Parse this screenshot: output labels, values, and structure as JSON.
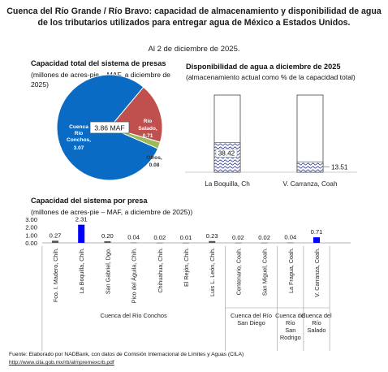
{
  "header": {
    "title_line1": "Cuenca del Río Grande / Río Bravo: capacidad de almacenamiento y disponibilidad de agua",
    "title_line2": "de los tributarios utilizados para entregar agua de México a Estados Unidos.",
    "date_note": "Al 2 de diciembre de 2025."
  },
  "pie_panel": {
    "title": "Capacidad total del sistema de presas",
    "subtitle": "(millones de acres-pie – MAF, a diciembre de 2025)"
  },
  "avail_panel": {
    "title": "Disponibilidad de agua a diciembre de 2025",
    "subtitle": "(almacenamiento actual como % de la capacidad total)"
  },
  "bar_panel": {
    "title": "Capacidad del sistema por presa",
    "subtitle": "(millones de acres-pie – MAF, a diciembre de 2025))"
  },
  "footer": {
    "source": "Fuente: Elaborado por NADBank, con datos de Comisión Internacional de Límites y Aguas (CILA)",
    "link": "http://www.cila.gob.mx/rb/almpremexcrb.pdf"
  },
  "chart_data": [
    {
      "type": "pie",
      "center_label": "3.86 MAF",
      "slices": [
        {
          "label": "Cuenca Río Conchos",
          "value": 3.07,
          "color": "#0a6bc4"
        },
        {
          "label": "Río Salado",
          "value": 0.71,
          "color": "#c0504d"
        },
        {
          "label": "Otros",
          "value": 0.08,
          "color": "#9bbb59"
        }
      ]
    },
    {
      "type": "bar",
      "categories": [
        "La Boquilla, Ch",
        "V. Carranza, Coah"
      ],
      "values": [
        38.42,
        13.51
      ],
      "ylim": [
        0,
        100
      ],
      "value_labels": [
        "38.42",
        "13.51"
      ]
    },
    {
      "type": "bar",
      "yticks": [
        "0.00",
        "1.00",
        "2.00",
        "3.00"
      ],
      "ylim": [
        0,
        3
      ],
      "categories": [
        "Fco. I. Madero, Chih.",
        "La Boquilla, Chih.",
        "San Gabriel, Dgo.",
        "Pico del Águila, Chih.",
        "Chihuahua, Chih.",
        "El Rejón, Chih.",
        "Luis L. León, Chih.",
        "Centenario, Coah.",
        "San Miguel, Coah.",
        "La Fragua, Coah.",
        "V. Carranza, Coah."
      ],
      "values": [
        0.27,
        2.31,
        0.2,
        0.04,
        0.02,
        0.01,
        0.23,
        0.02,
        0.02,
        0.04,
        0.71
      ],
      "value_labels": [
        "0.27",
        "2.31",
        "0.20",
        "0.04",
        "0.02",
        "0.01",
        "0.23",
        "0.02",
        "0.02",
        "0.04",
        "0.71"
      ],
      "highlight": [
        false,
        true,
        false,
        false,
        false,
        false,
        false,
        false,
        false,
        false,
        true
      ],
      "colors": {
        "highlight": "#0000ff",
        "normal": "#555555"
      },
      "groups": [
        {
          "label": "Cuenca del Río Conchos",
          "count": 7
        },
        {
          "label": "Cuenca del Río San Diego",
          "count": 2
        },
        {
          "label": "Cuenca del Río San Rodrigo",
          "count": 1
        },
        {
          "label": "Cuenca del Río Salado",
          "count": 1
        }
      ]
    }
  ]
}
